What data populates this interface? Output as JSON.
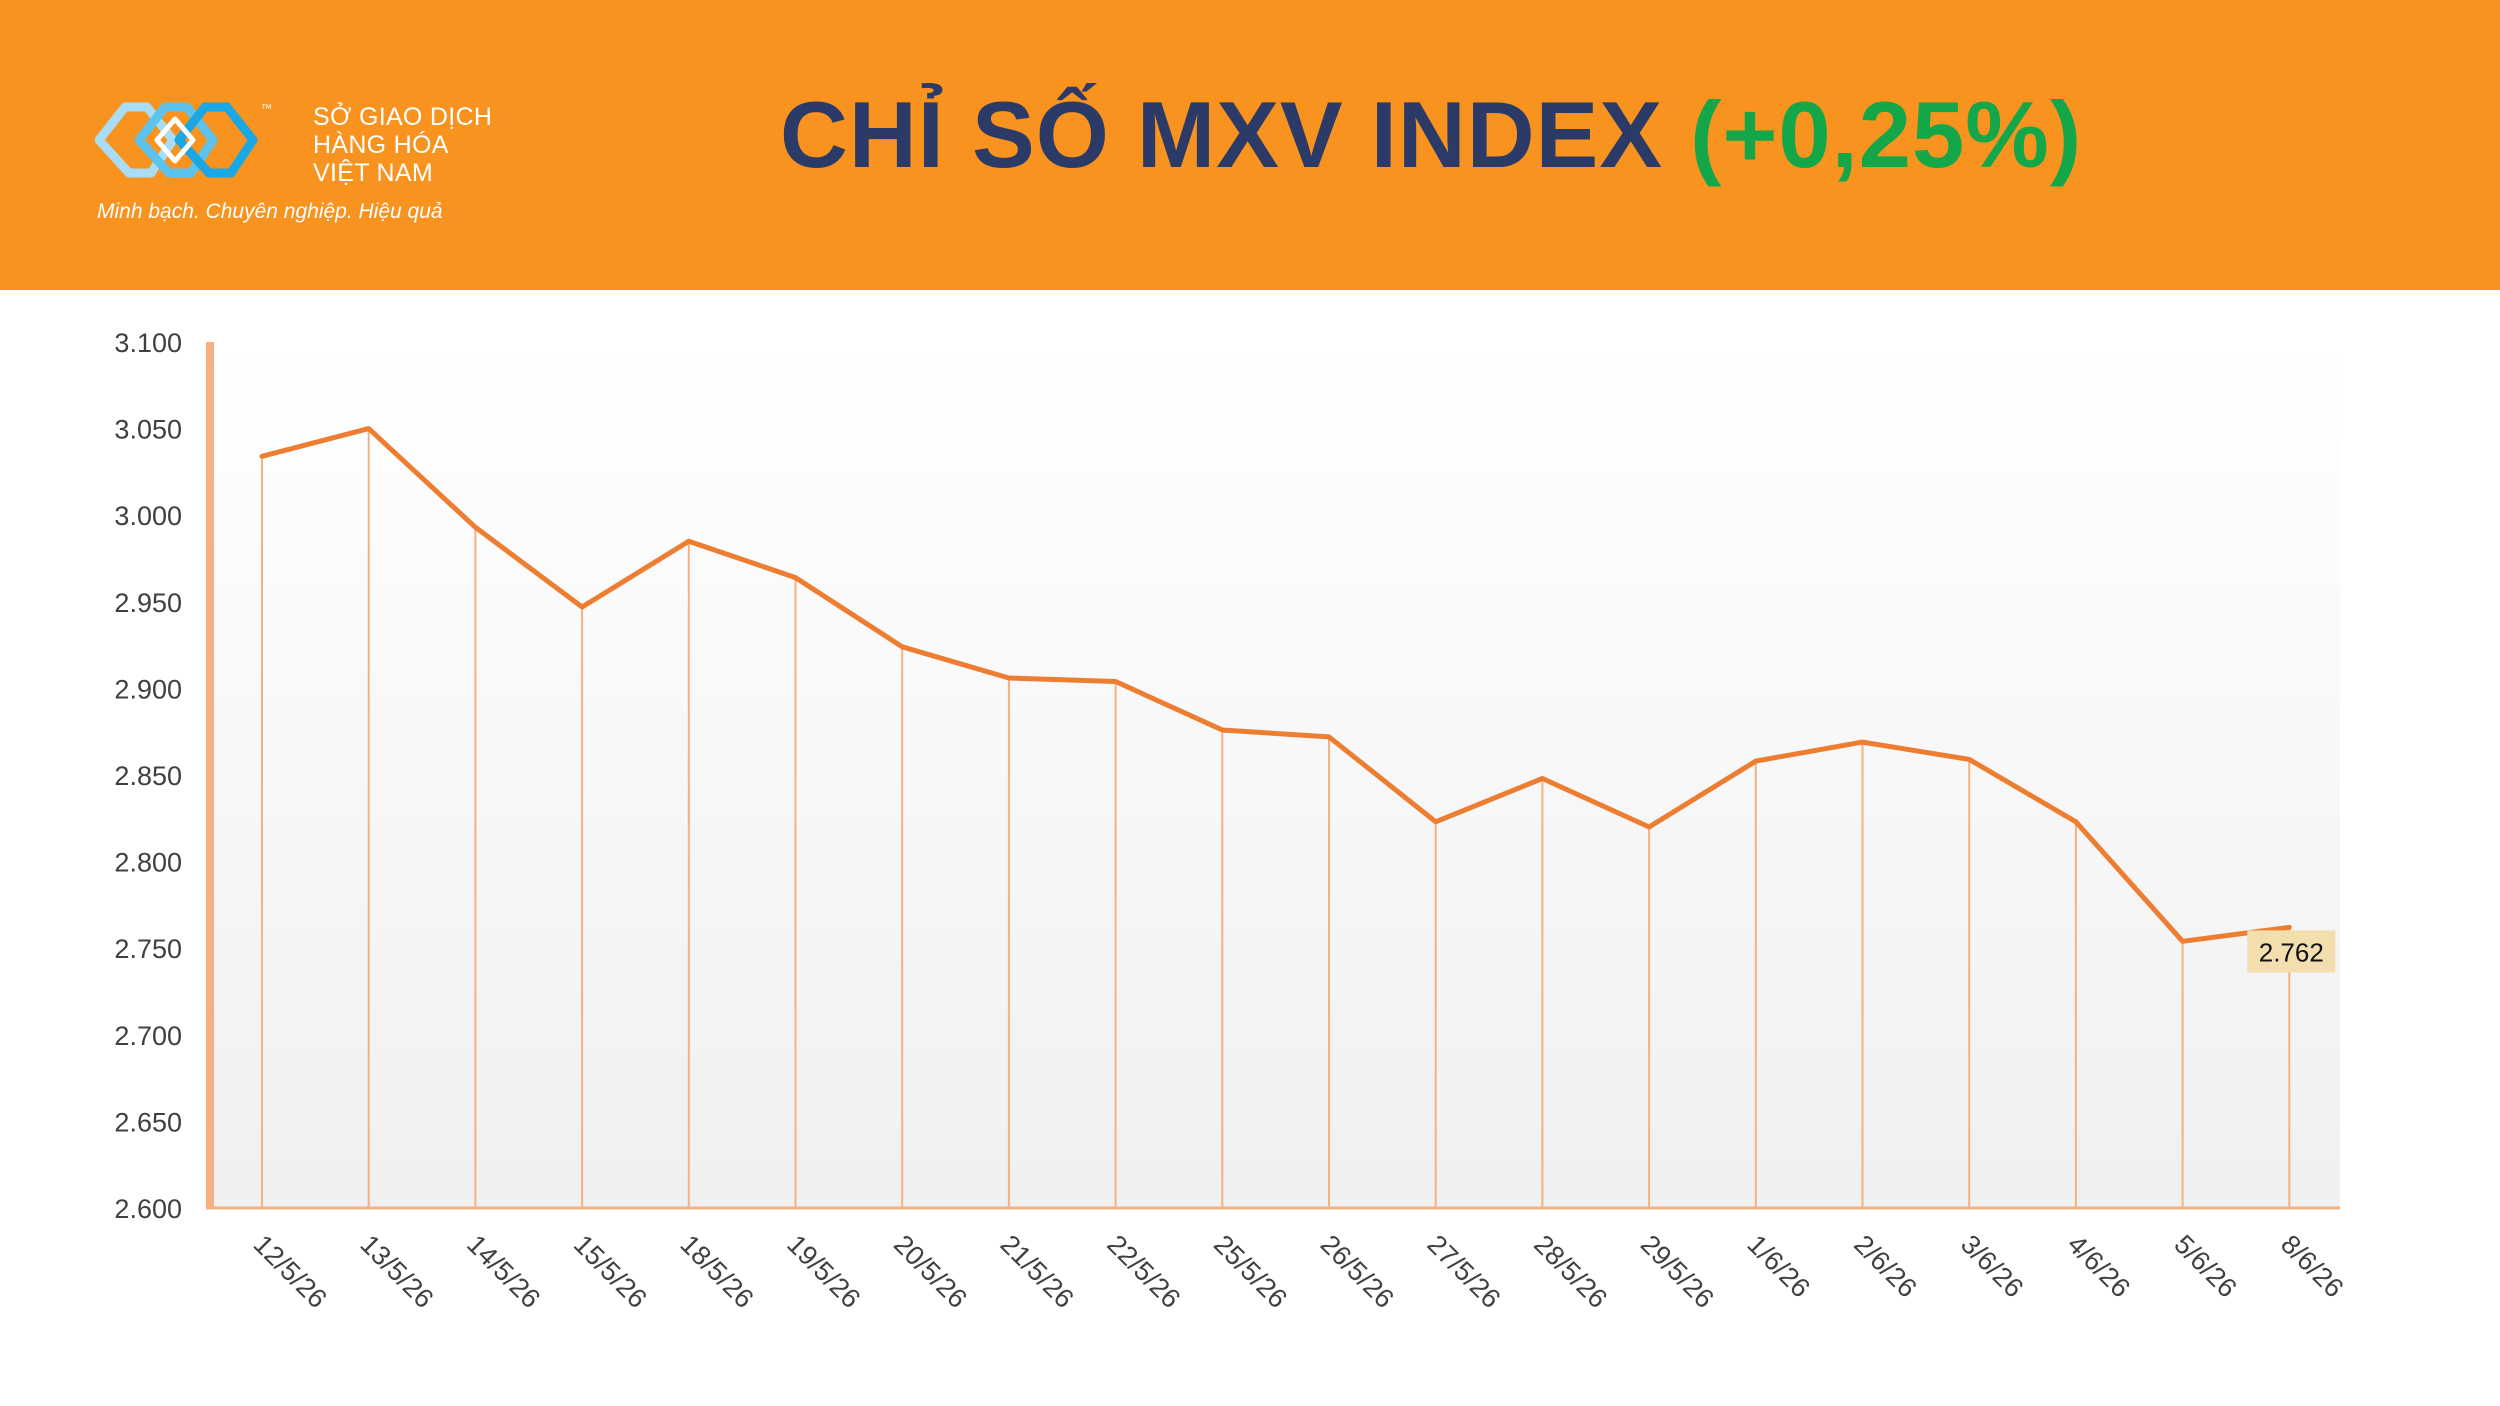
{
  "header": {
    "logo": {
      "name_lines": [
        "SỞ GIAO DỊCH",
        "HÀNG HÓA",
        "VIỆT NAM"
      ],
      "tm": "™",
      "slogan": "Minh bạch. Chuyên nghiệp. Hiệu quả"
    },
    "title_main": "CHỈ SỐ MXV INDEX ",
    "title_change": "(+0,25%)",
    "colors": {
      "background": "#F7931E",
      "title": "#2B3A67",
      "change": "#13A74A"
    }
  },
  "chart_data": {
    "type": "line",
    "categories": [
      "12/5/26",
      "13/5/26",
      "14/5/26",
      "15/5/26",
      "18/5/26",
      "19/5/26",
      "20/5/26",
      "21/5/26",
      "22/5/26",
      "25/5/26",
      "26/5/26",
      "27/5/26",
      "28/5/26",
      "29/5/26",
      "1/6/26",
      "2/6/26",
      "3/6/26",
      "4/6/26",
      "5/6/26",
      "8/6/26"
    ],
    "values": [
      3034,
      3050,
      2993,
      2947,
      2985,
      2964,
      2924,
      2906,
      2904,
      2876,
      2872,
      2823,
      2848,
      2820,
      2858,
      2869,
      2859,
      2823,
      2754,
      2762
    ],
    "yticks": [
      "3.100",
      "3.050",
      "3.000",
      "2.950",
      "2.900",
      "2.850",
      "2.800",
      "2.750",
      "2.700",
      "2.650",
      "2.600"
    ],
    "ylim": [
      2600,
      3100
    ],
    "last_label": "2.762",
    "drop_lines": true,
    "colors": {
      "line": "#ED7D31",
      "drop": "#F4B183",
      "axis": "#F4B183",
      "label_bg": "#F3DEAE",
      "grid_bg": "#F2F2F2"
    }
  }
}
